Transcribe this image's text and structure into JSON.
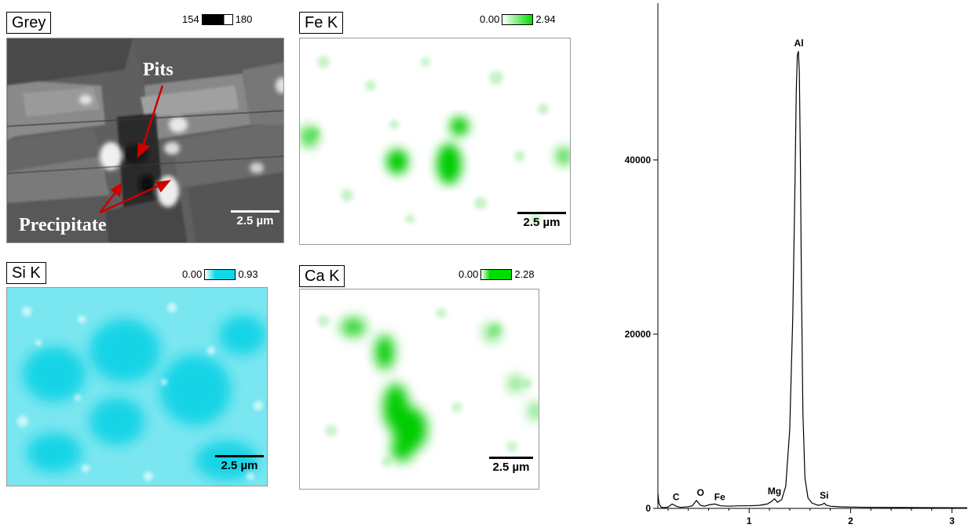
{
  "maps": {
    "grey": {
      "label": "Grey",
      "scale_min": "154",
      "scale_max": "180",
      "scale_bar": "2.5 µm",
      "annotations": {
        "pits": "Pits",
        "precipitate": "Precipitate"
      }
    },
    "fe": {
      "label": "Fe K",
      "scale_min": "0.00",
      "scale_max": "2.94",
      "scale_bar": "2.5 µm",
      "color": "#00dd00"
    },
    "si": {
      "label": "Si K",
      "scale_min": "0.00",
      "scale_max": "0.93",
      "scale_bar": "2.5 µm",
      "color": "#11d8e8"
    },
    "ca": {
      "label": "Ca K",
      "scale_min": "0.00",
      "scale_max": "2.28",
      "scale_bar": "2.5 µm",
      "color": "#00dd00"
    }
  },
  "chart_data": {
    "type": "line",
    "title": "",
    "xlabel": "",
    "ylabel": "",
    "xlim": [
      0.1,
      3.15
    ],
    "ylim": [
      0,
      58000
    ],
    "x_ticks": [
      1,
      2,
      3
    ],
    "y_ticks": [
      0,
      20000,
      40000
    ],
    "grid": false,
    "series": [
      {
        "x": [
          0.1,
          0.11,
          0.13,
          0.16,
          0.2,
          0.24,
          0.28,
          0.32,
          0.36,
          0.4,
          0.44,
          0.48,
          0.52,
          0.56,
          0.6,
          0.66,
          0.72,
          0.8,
          0.9,
          1.0,
          1.1,
          1.18,
          1.22,
          1.25,
          1.28,
          1.32,
          1.36,
          1.4,
          1.43,
          1.45,
          1.465,
          1.475,
          1.486,
          1.495,
          1.505,
          1.515,
          1.53,
          1.55,
          1.58,
          1.62,
          1.68,
          1.72,
          1.74,
          1.76,
          1.8,
          1.9,
          2.0,
          2.2,
          2.5,
          2.8,
          3.15
        ],
        "y": [
          1700,
          600,
          150,
          80,
          150,
          500,
          250,
          120,
          150,
          200,
          300,
          900,
          350,
          250,
          400,
          500,
          300,
          250,
          300,
          300,
          350,
          500,
          800,
          1100,
          700,
          1000,
          2500,
          9000,
          22000,
          36000,
          48000,
          52000,
          52500,
          50000,
          40000,
          26000,
          11000,
          3500,
          1200,
          600,
          350,
          450,
          600,
          380,
          250,
          180,
          150,
          120,
          100,
          80,
          70
        ]
      }
    ],
    "peak_labels": [
      {
        "text": "C",
        "x": 0.28,
        "y": 400
      },
      {
        "text": "O",
        "x": 0.52,
        "y": 900
      },
      {
        "text": "Fe",
        "x": 0.71,
        "y": 400
      },
      {
        "text": "Mg",
        "x": 1.25,
        "y": 1100
      },
      {
        "text": "Al",
        "x": 1.49,
        "y": 52500
      },
      {
        "text": "Si",
        "x": 1.74,
        "y": 600
      }
    ]
  }
}
